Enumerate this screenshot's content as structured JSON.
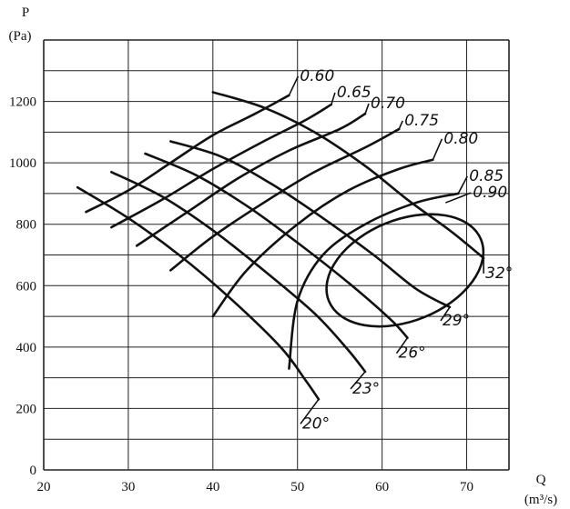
{
  "chart_data": {
    "type": "line",
    "title": "",
    "xlabel": "Q",
    "xunit": "(m³/s)",
    "ylabel": "P",
    "yunit": "(Pa)",
    "xlim": [
      20,
      75
    ],
    "ylim": [
      0,
      1400
    ],
    "xticks": [
      "20",
      "30",
      "40",
      "50",
      "60",
      "70"
    ],
    "yticks": [
      "0",
      "200",
      "400",
      "600",
      "800",
      "1000",
      "1200"
    ],
    "grid": true,
    "series": [
      {
        "name": "20°",
        "points": [
          [
            24,
            920
          ],
          [
            30,
            820
          ],
          [
            36,
            700
          ],
          [
            42,
            560
          ],
          [
            48,
            400
          ],
          [
            51,
            290
          ],
          [
            52.5,
            230
          ]
        ]
      },
      {
        "name": "23°",
        "points": [
          [
            28,
            970
          ],
          [
            34,
            890
          ],
          [
            40,
            780
          ],
          [
            46,
            650
          ],
          [
            52,
            510
          ],
          [
            56,
            390
          ],
          [
            58,
            320
          ]
        ]
      },
      {
        "name": "26°",
        "points": [
          [
            32,
            1030
          ],
          [
            38,
            960
          ],
          [
            44,
            860
          ],
          [
            50,
            740
          ],
          [
            56,
            610
          ],
          [
            61,
            490
          ],
          [
            63,
            430
          ]
        ]
      },
      {
        "name": "29°",
        "points": [
          [
            35,
            1070
          ],
          [
            41,
            1020
          ],
          [
            47,
            930
          ],
          [
            53,
            820
          ],
          [
            59,
            700
          ],
          [
            64,
            590
          ],
          [
            68,
            530
          ]
        ]
      },
      {
        "name": "32°",
        "points": [
          [
            40,
            1230
          ],
          [
            46,
            1180
          ],
          [
            52,
            1100
          ],
          [
            58,
            990
          ],
          [
            63,
            880
          ],
          [
            68,
            780
          ],
          [
            72,
            690
          ]
        ]
      },
      {
        "name": "0.60",
        "points": [
          [
            25,
            840
          ],
          [
            30,
            910
          ],
          [
            35,
            1000
          ],
          [
            40,
            1090
          ],
          [
            45,
            1160
          ],
          [
            49,
            1220
          ]
        ]
      },
      {
        "name": "0.65",
        "points": [
          [
            28,
            790
          ],
          [
            34,
            880
          ],
          [
            40,
            980
          ],
          [
            46,
            1070
          ],
          [
            51,
            1140
          ],
          [
            54,
            1190
          ]
        ]
      },
      {
        "name": "0.70",
        "points": [
          [
            31,
            730
          ],
          [
            37,
            840
          ],
          [
            43,
            950
          ],
          [
            49,
            1040
          ],
          [
            55,
            1110
          ],
          [
            58,
            1160
          ]
        ]
      },
      {
        "name": "0.75",
        "points": [
          [
            35,
            650
          ],
          [
            40,
            760
          ],
          [
            46,
            870
          ],
          [
            52,
            970
          ],
          [
            58,
            1050
          ],
          [
            62,
            1110
          ]
        ]
      },
      {
        "name": "0.80",
        "points": [
          [
            40,
            500
          ],
          [
            44,
            650
          ],
          [
            50,
            800
          ],
          [
            56,
            910
          ],
          [
            62,
            980
          ],
          [
            66,
            1010
          ]
        ]
      },
      {
        "name": "0.85",
        "points": [
          [
            49,
            330
          ],
          [
            50,
            550
          ],
          [
            53,
            700
          ],
          [
            58,
            800
          ],
          [
            64,
            870
          ],
          [
            69,
            900
          ]
        ]
      },
      {
        "name": "0.90",
        "ellipse": {
          "center": [
            62.7,
            650
          ],
          "rx": 9.7,
          "ry": 165,
          "rotation_deg": -22
        }
      }
    ]
  }
}
